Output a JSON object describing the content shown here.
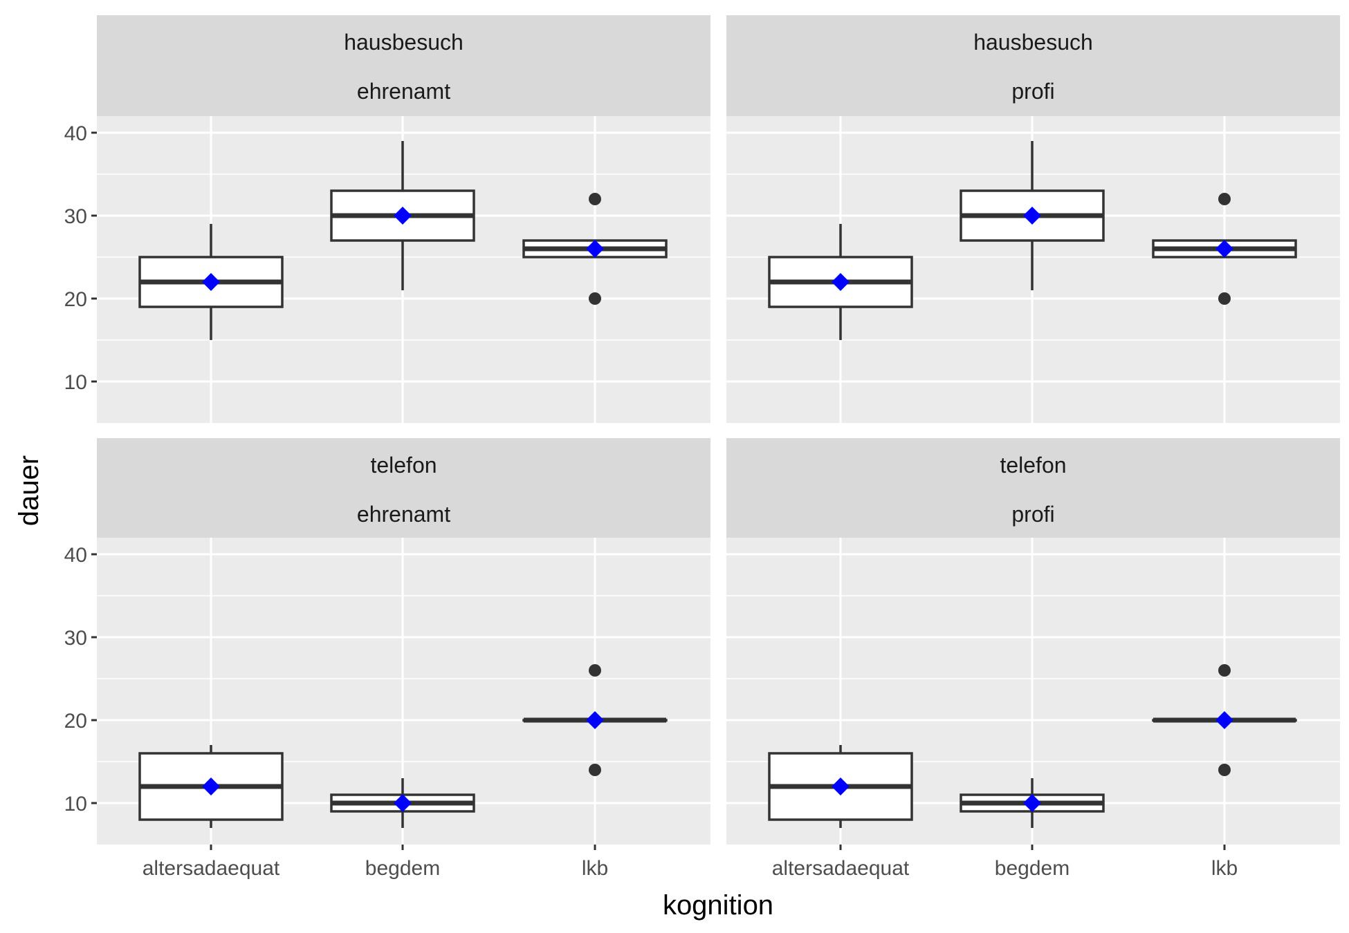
{
  "chart_data": {
    "type": "box",
    "xlabel": "kognition",
    "ylabel": "dauer",
    "categories": [
      "altersadaequat",
      "begdem",
      "lkb"
    ],
    "ylim": [
      5,
      42
    ],
    "yticks": [
      10,
      20,
      30,
      40
    ],
    "grid": true,
    "colors": {
      "mean_marker": "#0000ff",
      "box_line": "#333333",
      "panel": "#ebebeb",
      "strip": "#d9d9d9"
    },
    "panels": [
      {
        "strip": [
          "hausbesuch",
          "ehrenamt"
        ],
        "boxes": [
          {
            "category": "altersadaequat",
            "min": 15,
            "q1": 19,
            "median": 22,
            "q3": 25,
            "max": 29,
            "mean": 22,
            "outliers": []
          },
          {
            "category": "begdem",
            "min": 21,
            "q1": 27,
            "median": 30,
            "q3": 33,
            "max": 39,
            "mean": 30,
            "outliers": []
          },
          {
            "category": "lkb",
            "min": 25,
            "q1": 25,
            "median": 26,
            "q3": 27,
            "max": 27,
            "mean": 26,
            "outliers": [
              32,
              20
            ]
          }
        ]
      },
      {
        "strip": [
          "hausbesuch",
          "profi"
        ],
        "boxes": [
          {
            "category": "altersadaequat",
            "min": 15,
            "q1": 19,
            "median": 22,
            "q3": 25,
            "max": 29,
            "mean": 22,
            "outliers": []
          },
          {
            "category": "begdem",
            "min": 21,
            "q1": 27,
            "median": 30,
            "q3": 33,
            "max": 39,
            "mean": 30,
            "outliers": []
          },
          {
            "category": "lkb",
            "min": 25,
            "q1": 25,
            "median": 26,
            "q3": 27,
            "max": 27,
            "mean": 26,
            "outliers": [
              32,
              20
            ]
          }
        ]
      },
      {
        "strip": [
          "telefon",
          "ehrenamt"
        ],
        "boxes": [
          {
            "category": "altersadaequat",
            "min": 7,
            "q1": 8,
            "median": 12,
            "q3": 16,
            "max": 17,
            "mean": 12,
            "outliers": []
          },
          {
            "category": "begdem",
            "min": 7,
            "q1": 9,
            "median": 10,
            "q3": 11,
            "max": 13,
            "mean": 10,
            "outliers": []
          },
          {
            "category": "lkb",
            "min": 20,
            "q1": 20,
            "median": 20,
            "q3": 20,
            "max": 20,
            "mean": 20,
            "outliers": [
              26,
              14
            ]
          }
        ]
      },
      {
        "strip": [
          "telefon",
          "profi"
        ],
        "boxes": [
          {
            "category": "altersadaequat",
            "min": 7,
            "q1": 8,
            "median": 12,
            "q3": 16,
            "max": 17,
            "mean": 12,
            "outliers": []
          },
          {
            "category": "begdem",
            "min": 7,
            "q1": 9,
            "median": 10,
            "q3": 11,
            "max": 13,
            "mean": 10,
            "outliers": []
          },
          {
            "category": "lkb",
            "min": 20,
            "q1": 20,
            "median": 20,
            "q3": 20,
            "max": 20,
            "mean": 20,
            "outliers": [
              26,
              14
            ]
          }
        ]
      }
    ]
  }
}
